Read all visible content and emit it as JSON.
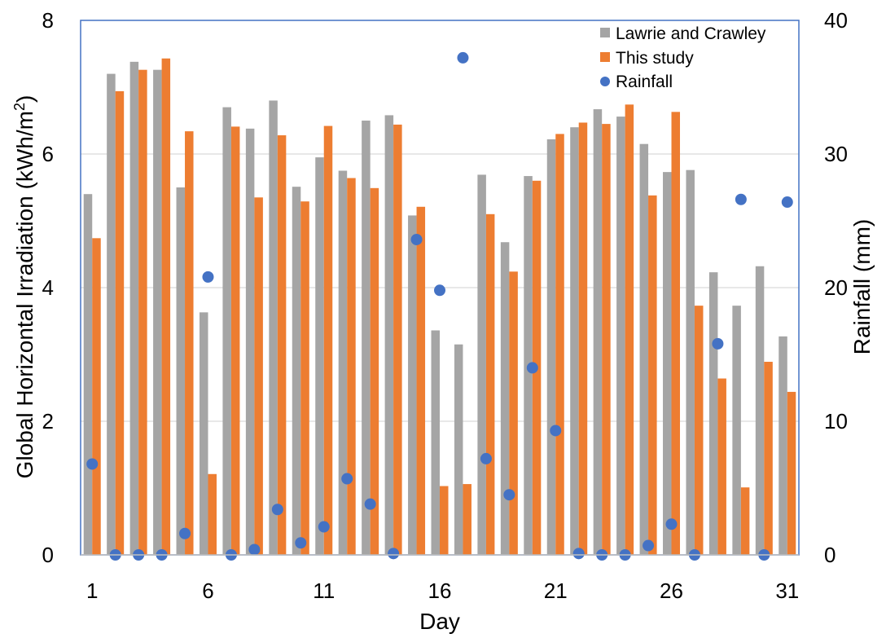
{
  "chart_data": {
    "type": "bar",
    "xlabel": "Day",
    "ylabel": "Global Horizontal Irradiation (kWh/m²)",
    "ylabel_parts": [
      "Global Horizontal Irradiation (kWh/m",
      "2",
      ")"
    ],
    "y2label": "Rainfall (mm)",
    "ylim": [
      0,
      8
    ],
    "y2lim": [
      0,
      40
    ],
    "yticks": [
      0,
      2,
      4,
      6,
      8
    ],
    "y2ticks": [
      0,
      10,
      20,
      30,
      40
    ],
    "x_tick_labels": [
      "1",
      "6",
      "11",
      "16",
      "21",
      "26",
      "31"
    ],
    "x": [
      1,
      2,
      3,
      4,
      5,
      6,
      7,
      8,
      9,
      10,
      11,
      12,
      13,
      14,
      15,
      16,
      17,
      18,
      19,
      20,
      21,
      22,
      23,
      24,
      25,
      26,
      27,
      28,
      29,
      30,
      31
    ],
    "grid": true,
    "legend_position": "top-right",
    "series": [
      {
        "name": "Lawrie and Crawley",
        "type": "bar",
        "axis": "left",
        "color": "#A5A5A5",
        "values": [
          5.4,
          7.2,
          7.38,
          7.26,
          5.5,
          3.63,
          6.7,
          6.38,
          6.8,
          5.51,
          5.95,
          5.75,
          6.5,
          6.58,
          5.08,
          3.36,
          3.15,
          5.69,
          4.68,
          5.67,
          6.22,
          6.4,
          6.67,
          6.56,
          6.15,
          5.73,
          5.76,
          4.23,
          3.73,
          4.32,
          3.27
        ]
      },
      {
        "name": "This study",
        "type": "bar",
        "axis": "left",
        "color": "#ED7D31",
        "values": [
          4.74,
          6.94,
          7.26,
          7.43,
          6.34,
          1.21,
          6.41,
          5.35,
          6.28,
          5.29,
          6.42,
          5.64,
          5.49,
          6.44,
          5.21,
          1.03,
          1.06,
          5.1,
          4.24,
          5.6,
          6.3,
          6.47,
          6.45,
          6.74,
          5.38,
          6.63,
          3.73,
          2.64,
          1.01,
          2.89,
          2.44
        ]
      },
      {
        "name": "Rainfall",
        "type": "scatter",
        "axis": "right",
        "color": "#4472C4",
        "values": [
          6.8,
          0,
          0,
          0,
          1.6,
          20.8,
          0,
          0.4,
          3.4,
          0.9,
          2.1,
          5.7,
          3.8,
          0.1,
          23.6,
          19.8,
          37.2,
          7.2,
          4.5,
          14.0,
          9.3,
          0.1,
          0,
          0,
          0.7,
          2.3,
          0,
          15.8,
          26.6,
          0,
          26.4
        ]
      }
    ]
  }
}
